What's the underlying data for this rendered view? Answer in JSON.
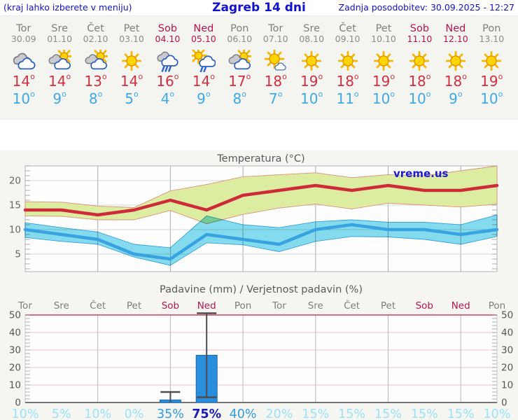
{
  "header": {
    "left_note": "(kraj lahko izberete v meniju)",
    "title": "Zagreb 14 dni",
    "updated": "Zadnja posodobitev: 30.09.2025 - 12:27"
  },
  "colors": {
    "accent_blue": "#1212cc",
    "weekend": "#b5134e",
    "day_gray": "#7f7f7f",
    "high_red": "#d23040",
    "low_blue": "#3fa9e8",
    "prob_low": "#9ce2f5",
    "prob_mid": "#2f9ce2",
    "prob_high": "#1d1db5"
  },
  "forecast": {
    "days": [
      {
        "name": "Tor",
        "date": "30.09",
        "icon": "cloudy",
        "high": 14,
        "low": 10,
        "weekend": false
      },
      {
        "name": "Sre",
        "date": "01.10",
        "icon": "partly-cloudy",
        "high": 14,
        "low": 9,
        "weekend": false
      },
      {
        "name": "Čet",
        "date": "02.10",
        "icon": "partly-cloudy",
        "high": 13,
        "low": 8,
        "weekend": false
      },
      {
        "name": "Pet",
        "date": "03.10",
        "icon": "sunny",
        "high": 14,
        "low": 5,
        "weekend": false
      },
      {
        "name": "Sob",
        "date": "04.10",
        "icon": "rain",
        "high": 16,
        "low": 4,
        "weekend": true
      },
      {
        "name": "Ned",
        "date": "05.10",
        "icon": "sun-rain",
        "high": 14,
        "low": 9,
        "weekend": true
      },
      {
        "name": "Pon",
        "date": "06.10",
        "icon": "partly-cloudy",
        "high": 17,
        "low": 8,
        "weekend": false
      },
      {
        "name": "Tor",
        "date": "07.10",
        "icon": "mostly-sunny",
        "high": 18,
        "low": 7,
        "weekend": false
      },
      {
        "name": "Sre",
        "date": "08.10",
        "icon": "sunny",
        "high": 19,
        "low": 10,
        "weekend": false
      },
      {
        "name": "Čet",
        "date": "09.10",
        "icon": "sunny",
        "high": 18,
        "low": 11,
        "weekend": false
      },
      {
        "name": "Pet",
        "date": "10.10",
        "icon": "sunny",
        "high": 19,
        "low": 10,
        "weekend": false
      },
      {
        "name": "Sob",
        "date": "11.10",
        "icon": "sunny",
        "high": 18,
        "low": 10,
        "weekend": true
      },
      {
        "name": "Ned",
        "date": "12.10",
        "icon": "sunny",
        "high": 18,
        "low": 9,
        "weekend": true
      },
      {
        "name": "Pon",
        "date": "13.10",
        "icon": "sunny",
        "high": 19,
        "low": 10,
        "weekend": false
      }
    ]
  },
  "chart_data": [
    {
      "type": "line",
      "title": "Temperatura (°C)",
      "watermark": "vreme.us",
      "categories": [
        "Tor",
        "Sre",
        "Čet",
        "Pet",
        "Sob",
        "Ned",
        "Pon",
        "Tor",
        "Sre",
        "Čet",
        "Pet",
        "Sob",
        "Ned",
        "Pon"
      ],
      "ylim": [
        1.4,
        23
      ],
      "yticks": [
        5,
        10,
        15,
        20
      ],
      "grid": true,
      "series": [
        {
          "name": "max-temp",
          "values": [
            14,
            14,
            13,
            14,
            16,
            14,
            17,
            18,
            19,
            18,
            19,
            18,
            18,
            19
          ]
        },
        {
          "name": "max-range-hi",
          "values": [
            15.7,
            15.6,
            14.8,
            14.5,
            17.9,
            19.2,
            20.8,
            21.2,
            21.6,
            20.6,
            21.2,
            21,
            22,
            23
          ]
        },
        {
          "name": "max-range-lo",
          "values": [
            12.8,
            12.7,
            12,
            12,
            13.9,
            11.2,
            13.1,
            14.4,
            15.2,
            14.2,
            15.4,
            15,
            14.6,
            15.2
          ]
        },
        {
          "name": "min-temp",
          "values": [
            10,
            9,
            8,
            5,
            4,
            9,
            8,
            7,
            10,
            11,
            10,
            10,
            9,
            10
          ]
        },
        {
          "name": "min-range-hi",
          "values": [
            11.4,
            10.4,
            9.5,
            7,
            6.3,
            12.8,
            11,
            10.4,
            11.6,
            12,
            11.5,
            11.5,
            11,
            13
          ]
        },
        {
          "name": "min-range-lo",
          "values": [
            8.4,
            7.6,
            7,
            4.4,
            2.7,
            7.3,
            6.9,
            5.5,
            7.6,
            8.6,
            8.5,
            8,
            7,
            8.6
          ]
        }
      ],
      "style": {
        "line_max": "#ce2b3a",
        "line_min": "#39a3e2",
        "band_max_fill": "#dceca0",
        "band_max_edge": "#e09079",
        "band_min_fill": "#85ddf0",
        "band_min_edge": "#36a3de"
      }
    },
    {
      "type": "bar",
      "title": "Padavine (mm) / Verjetnost padavin (%)",
      "categories": [
        "Tor",
        "Sre",
        "Čet",
        "Pet",
        "Sob",
        "Ned",
        "Pon",
        "Tor",
        "Sre",
        "Čet",
        "Pet",
        "Sob",
        "Ned",
        "Pon"
      ],
      "weekend_idx": [
        4,
        5,
        11,
        12
      ],
      "ylim": [
        0,
        51
      ],
      "yticks": [
        0,
        10,
        20,
        30,
        40,
        50
      ],
      "values": [
        0,
        0,
        0,
        0,
        1.5,
        27,
        0,
        0,
        0,
        0,
        0,
        0,
        0,
        0
      ],
      "whiskers": [
        null,
        null,
        null,
        null,
        {
          "lo": 0,
          "hi": 6
        },
        {
          "lo": 3,
          "hi": 51
        },
        null,
        null,
        null,
        null,
        null,
        null,
        null,
        null
      ],
      "probabilities": [
        10,
        5,
        10,
        0,
        35,
        75,
        40,
        20,
        15,
        15,
        15,
        15,
        15,
        10
      ],
      "style": {
        "bar_fill": "#2a8ede",
        "bar_edge": "#1967ad",
        "whisker": "#4d4d4d",
        "grid_pink": "#f0bfca",
        "top_line": "#cc3e63"
      }
    }
  ]
}
